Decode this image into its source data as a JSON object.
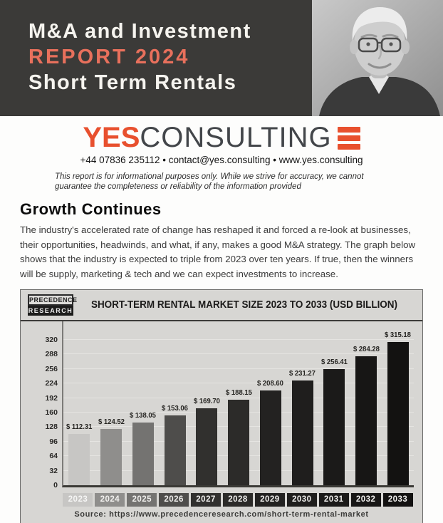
{
  "header": {
    "line1": "M&A and Investment",
    "line2": "REPORT 2024",
    "line3": "Short Term Rentals",
    "bg_color": "#3b3a38",
    "accent_color": "#e8705c"
  },
  "brand": {
    "logo_yes": "YES",
    "logo_consulting": "CONSULTING",
    "logo_color": "#e8502e",
    "contact": "+44 07836 235112 • contact@yes.consulting • www.yes.consulting",
    "disclaimer": "This report is for informational purposes only. While we strive for accuracy, we cannot guarantee the completeness or reliability of the information provided"
  },
  "growth": {
    "heading": "Growth Continues",
    "paragraph": "The industry's accelerated rate of change has reshaped it and forced a re-look at businesses, their opportunities, headwinds, and what, if any, makes a good M&A strategy. The graph below shows that the industry is expected to triple from 2023 over ten years. If true, then the winners will be supply, marketing & tech and we can expect investments to increase."
  },
  "chart": {
    "logo_top": "PRECEDENCE",
    "logo_bottom": "RESEARCH",
    "title": "SHORT-TERM RENTAL MARKET SIZE 2023 TO 2033 (USD BILLION)",
    "source": "Source: https://www.precedenceresearch.com/short-term-rental-market"
  },
  "chart_data": {
    "type": "bar",
    "title": "SHORT-TERM RENTAL MARKET SIZE 2023 TO 2033 (USD BILLION)",
    "categories": [
      "2023",
      "2024",
      "2025",
      "2026",
      "2027",
      "2028",
      "2029",
      "2030",
      "2031",
      "2032",
      "2033"
    ],
    "values": [
      112.31,
      124.52,
      138.05,
      153.06,
      169.7,
      188.15,
      208.6,
      231.27,
      256.41,
      284.28,
      315.18
    ],
    "value_labels": [
      "$ 112.31",
      "$ 124.52",
      "$ 138.05",
      "$ 153.06",
      "$ 169.70",
      "$ 188.15",
      "$ 208.60",
      "$ 231.27",
      "$ 256.41",
      "$ 284.28",
      "$ 315.18"
    ],
    "bar_colors": [
      "#c7c6c4",
      "#8f8e8c",
      "#747371",
      "#4e4d4b",
      "#31302e",
      "#2c2b29",
      "#232221",
      "#1f1e1d",
      "#1b1a19",
      "#171615",
      "#131211"
    ],
    "y_ticks": [
      0,
      32,
      64,
      96,
      128,
      160,
      192,
      224,
      256,
      288,
      320
    ],
    "ylim": [
      0,
      320
    ],
    "xlabel": "",
    "ylabel": "",
    "grid": true,
    "legend": false,
    "source": "Source: https://www.precedenceresearch.com/short-term-rental-market"
  }
}
